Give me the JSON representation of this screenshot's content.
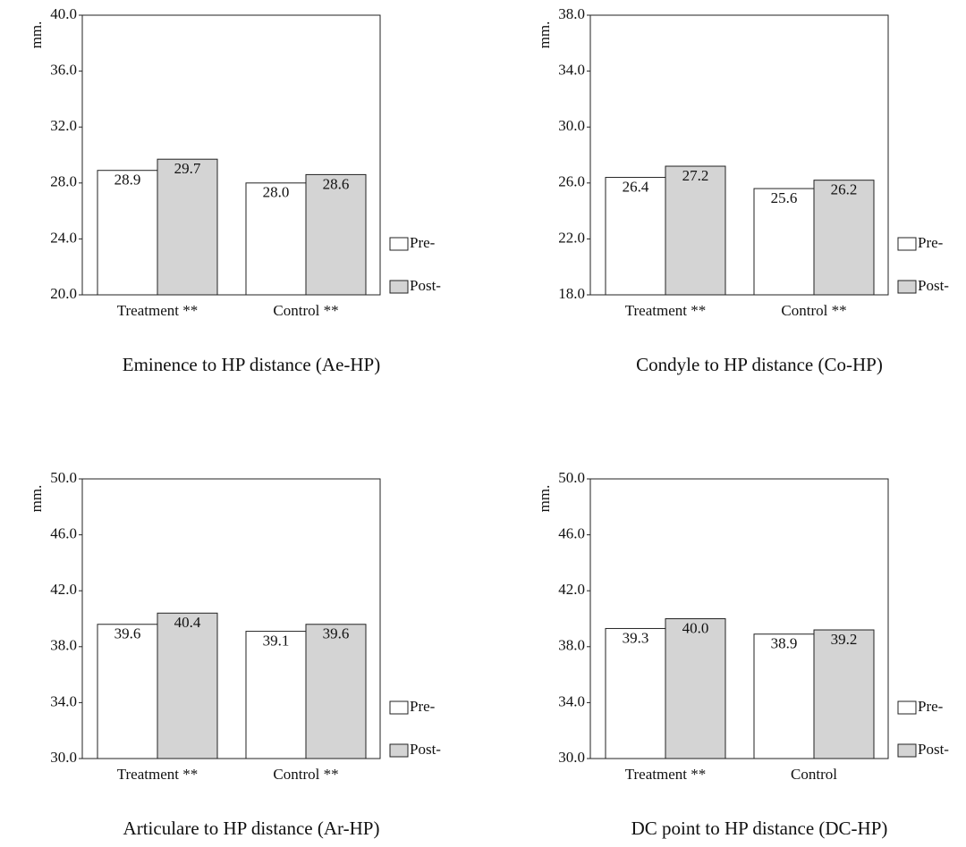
{
  "chart_data": [
    {
      "type": "bar",
      "y_label": "mm.",
      "caption": "Eminence to HP distance (Ae-HP)",
      "categories": [
        "Treatment **",
        "Control **"
      ],
      "series": [
        {
          "name": "Pre-",
          "color": "#ffffff",
          "values": [
            28.9,
            28.0
          ],
          "value_labels": [
            "28.9",
            "28.0"
          ]
        },
        {
          "name": "Post-",
          "color": "#d4d4d4",
          "values": [
            29.7,
            28.6
          ],
          "value_labels": [
            "29.7",
            "28.6"
          ]
        }
      ],
      "ylim": [
        20,
        40
      ],
      "yticks": [
        {
          "value": 20,
          "label": "20.0"
        },
        {
          "value": 24,
          "label": "24.0"
        },
        {
          "value": 28,
          "label": "28.0"
        },
        {
          "value": 32,
          "label": "32.0"
        },
        {
          "value": 36,
          "label": "36.0"
        },
        {
          "value": 40,
          "label": "40.0"
        }
      ]
    },
    {
      "type": "bar",
      "y_label": "mm.",
      "caption": "Condyle to HP distance (Co-HP)",
      "categories": [
        "Treatment **",
        "Control **"
      ],
      "series": [
        {
          "name": "Pre-",
          "color": "#ffffff",
          "values": [
            26.4,
            25.6
          ],
          "value_labels": [
            "26.4",
            "25.6"
          ]
        },
        {
          "name": "Post-",
          "color": "#d4d4d4",
          "values": [
            27.2,
            26.2
          ],
          "value_labels": [
            "27.2",
            "26.2"
          ]
        }
      ],
      "ylim": [
        18,
        38
      ],
      "yticks": [
        {
          "value": 18,
          "label": "18.0"
        },
        {
          "value": 22,
          "label": "22.0"
        },
        {
          "value": 26,
          "label": "26.0"
        },
        {
          "value": 30,
          "label": "30.0"
        },
        {
          "value": 34,
          "label": "34.0"
        },
        {
          "value": 38,
          "label": "38.0"
        }
      ]
    },
    {
      "type": "bar",
      "y_label": "mm.",
      "caption": "Articulare to HP distance (Ar-HP)",
      "categories": [
        "Treatment **",
        "Control **"
      ],
      "series": [
        {
          "name": "Pre-",
          "color": "#ffffff",
          "values": [
            39.6,
            39.1
          ],
          "value_labels": [
            "39.6",
            "39.1"
          ]
        },
        {
          "name": "Post-",
          "color": "#d4d4d4",
          "values": [
            40.4,
            39.6
          ],
          "value_labels": [
            "40.4",
            "39.6"
          ]
        }
      ],
      "ylim": [
        30,
        50
      ],
      "yticks": [
        {
          "value": 30,
          "label": "30.0"
        },
        {
          "value": 34,
          "label": "34.0"
        },
        {
          "value": 38,
          "label": "38.0"
        },
        {
          "value": 42,
          "label": "42.0"
        },
        {
          "value": 46,
          "label": "46.0"
        },
        {
          "value": 50,
          "label": "50.0"
        }
      ]
    },
    {
      "type": "bar",
      "y_label": "mm.",
      "caption": "DC point to HP distance (DC-HP)",
      "categories": [
        "Treatment **",
        "Control"
      ],
      "series": [
        {
          "name": "Pre-",
          "color": "#ffffff",
          "values": [
            39.3,
            38.9
          ],
          "value_labels": [
            "39.3",
            "38.9"
          ]
        },
        {
          "name": "Post-",
          "color": "#d4d4d4",
          "values": [
            40.0,
            39.2
          ],
          "value_labels": [
            "40.0",
            "39.2"
          ]
        }
      ],
      "ylim": [
        30,
        50
      ],
      "yticks": [
        {
          "value": 30,
          "label": "30.0"
        },
        {
          "value": 34,
          "label": "34.0"
        },
        {
          "value": 38,
          "label": "38.0"
        },
        {
          "value": 42,
          "label": "42.0"
        },
        {
          "value": 46,
          "label": "46.0"
        },
        {
          "value": 50,
          "label": "50.0"
        }
      ]
    }
  ]
}
